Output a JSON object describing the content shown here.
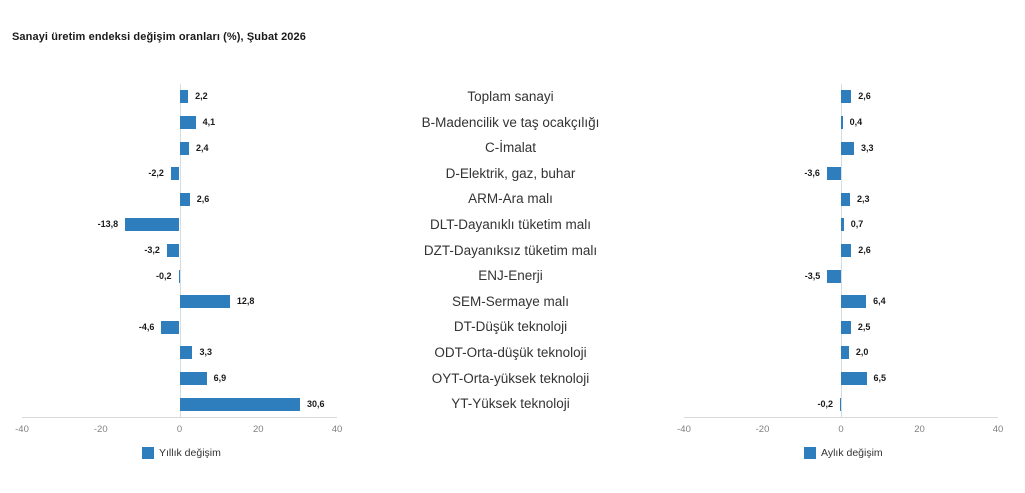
{
  "chart_data": {
    "type": "bar",
    "orientation": "horizontal",
    "title": "Sanayi üretim endeksi değişim oranları (%), Şubat 2026",
    "categories": [
      "Toplam sanayi",
      "B-Madencilik ve taş ocakçılığı",
      "C-İmalat",
      "D-Elektrik, gaz, buhar",
      "ARM-Ara malı",
      "DLT-Dayanıklı tüketim malı",
      "DZT-Dayanıksız tüketim malı",
      "ENJ-Enerji",
      "SEM-Sermaye malı",
      "DT-Düşük teknoloji",
      "ODT-Orta-düşük teknoloji",
      "OYT-Orta-yüksek teknoloji",
      "YT-Yüksek teknoloji"
    ],
    "series": [
      {
        "name": "Yıllık değişim",
        "values": [
          2.2,
          4.1,
          2.4,
          -2.2,
          2.6,
          -13.8,
          -3.2,
          -0.2,
          12.8,
          -4.6,
          3.3,
          6.9,
          30.6
        ]
      },
      {
        "name": "Aylık değişim",
        "values": [
          2.6,
          0.4,
          3.3,
          -3.6,
          2.3,
          0.7,
          2.6,
          -3.5,
          6.4,
          2.5,
          2.0,
          6.5,
          -0.2
        ]
      }
    ],
    "xlim": [
      -40,
      40
    ],
    "x_ticks": [
      "-40",
      "-20",
      "0",
      "20",
      "40"
    ],
    "grid": "zero-line-only",
    "legend_position": "bottom",
    "value_label_format": "comma-decimal-1dp"
  },
  "colors": {
    "bar": "#2e7ebd",
    "tick_text": "#808080",
    "zero_line": "#d4dde4",
    "axis_line": "#d9d9d9",
    "value_text": "#1a1a1a",
    "category_text": "#333333"
  }
}
